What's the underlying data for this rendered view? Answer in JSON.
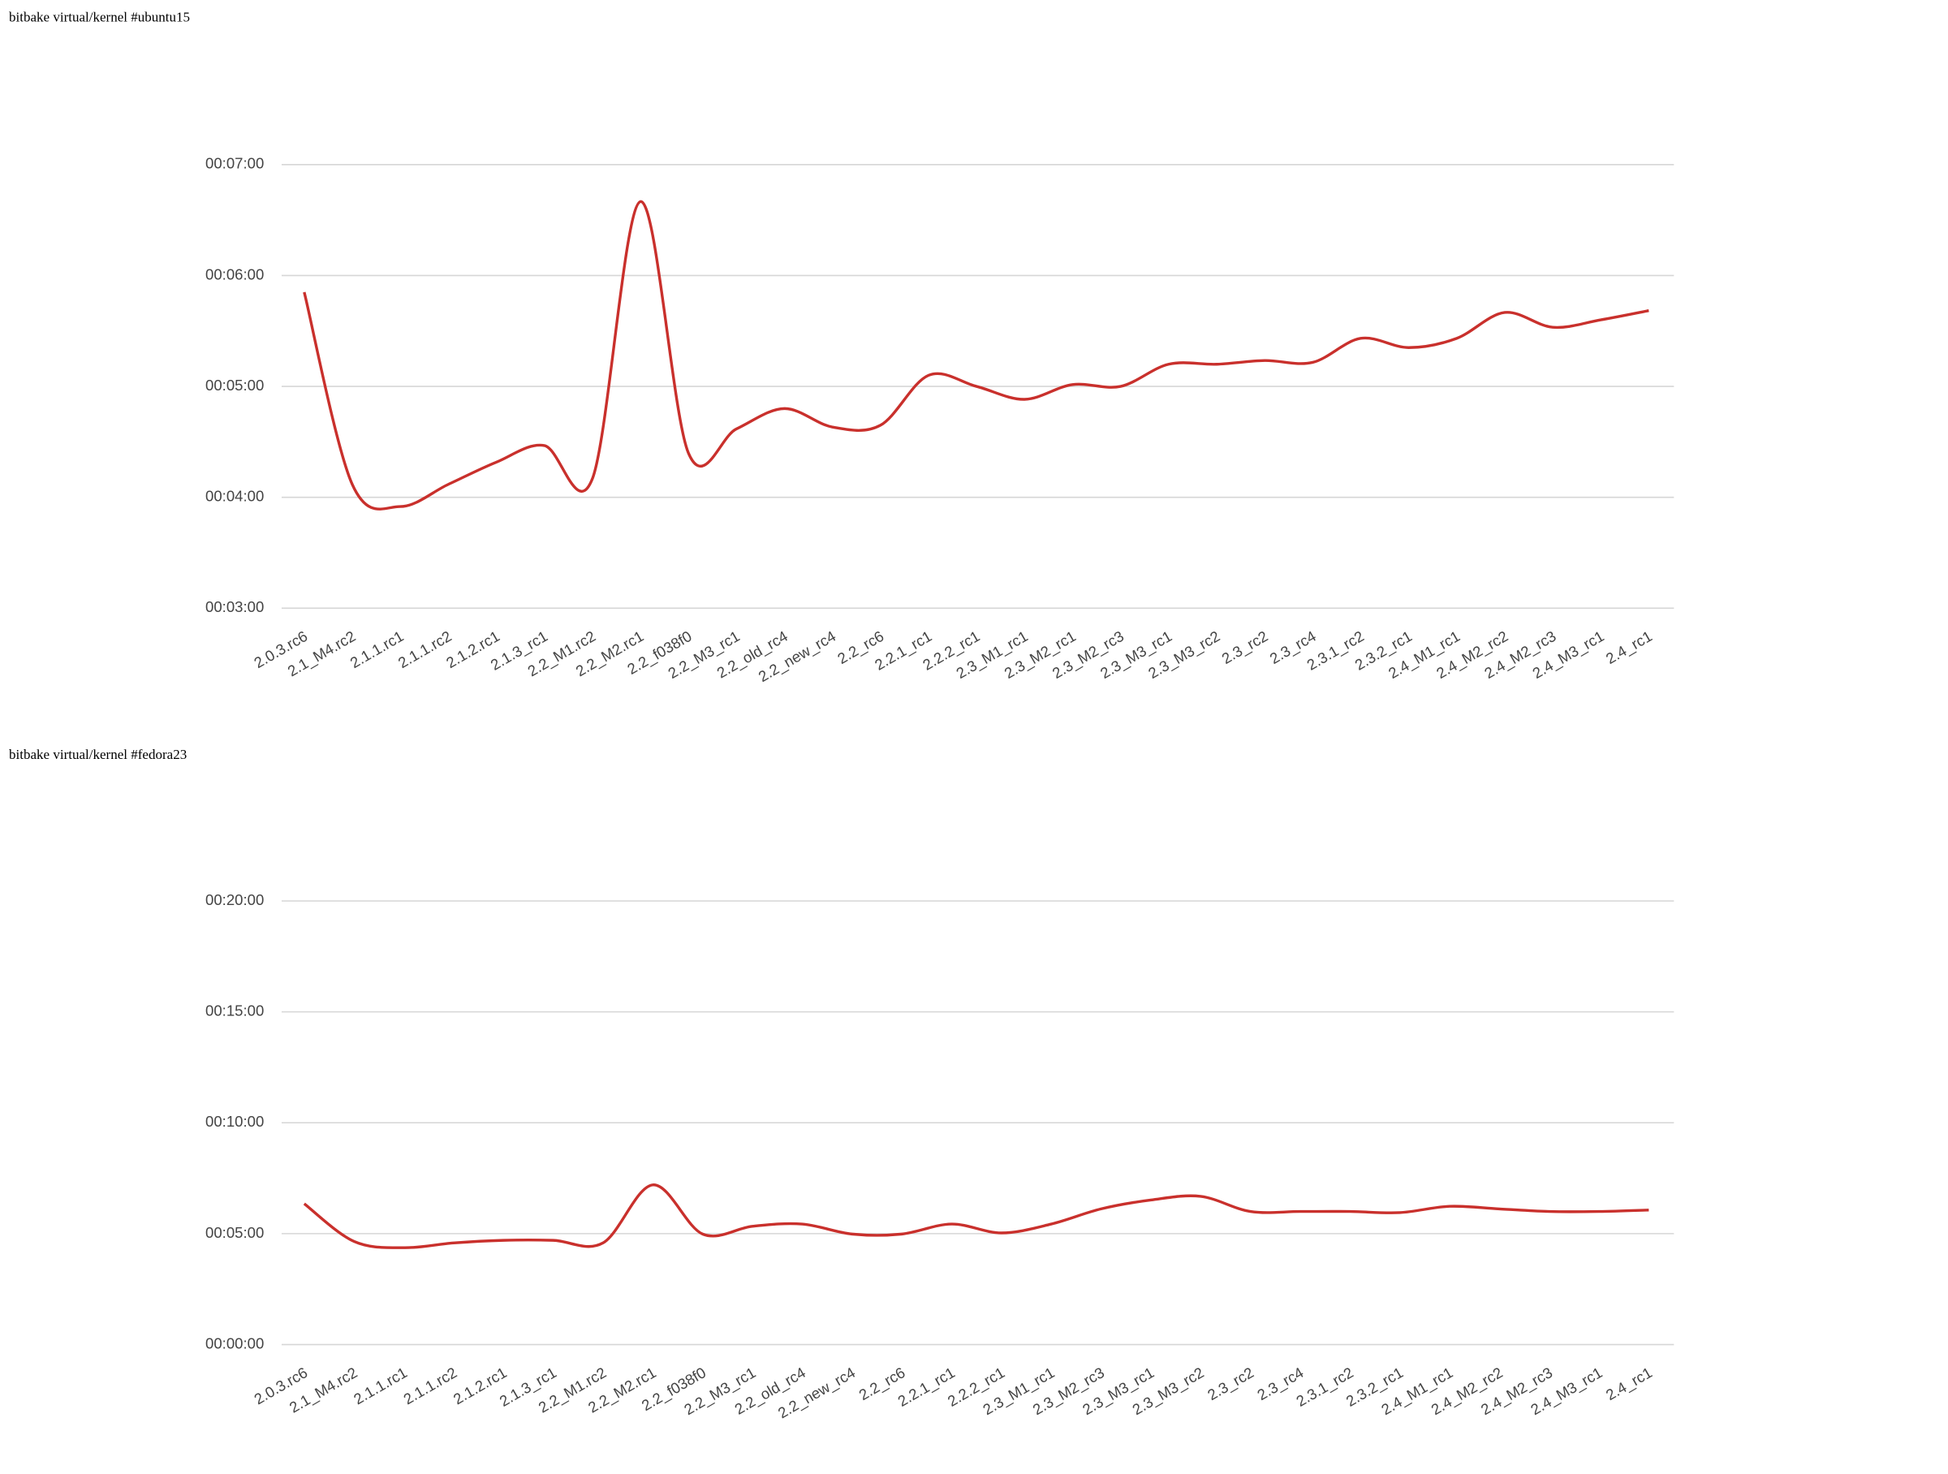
{
  "chart_data": [
    {
      "type": "line",
      "title": "bitbake virtual/kernel #ubuntu15",
      "categories": [
        "2.0.3.rc6",
        "2.1_M4.rc2",
        "2.1.1.rc1",
        "2.1.1.rc2",
        "2.1.2.rc1",
        "2.1.3_rc1",
        "2.2_M1.rc2",
        "2.2_M2.rc1",
        "2.2_f038f0",
        "2.2_M3_rc1",
        "2.2_old_rc4",
        "2.2_new_rc4",
        "2.2_rc6",
        "2.2.1_rc1",
        "2.2.2_rc1",
        "2.3_M1_rc1",
        "2.3_M2_rc1",
        "2.3_M2_rc3",
        "2.3_M3_rc1",
        "2.3_M3_rc2",
        "2.3_rc2",
        "2.3_rc4",
        "2.3.1_rc2",
        "2.3.2_rc1",
        "2.4_M1_rc1",
        "2.4_M2_rc2",
        "2.4_M2_rc3",
        "2.4_M3_rc1",
        "2.4_rc1"
      ],
      "series": [
        {
          "color": "#c9302c",
          "values": [
            351,
            247,
            235,
            247,
            259,
            268,
            250,
            400,
            264,
            277,
            288,
            278,
            279,
            306,
            300,
            293,
            301,
            300,
            312,
            312,
            314,
            313,
            326,
            321,
            326,
            340,
            332,
            336,
            341
          ]
        }
      ],
      "ylim": [
        180,
        420
      ],
      "yticks": [
        {
          "value": 180,
          "label": "00:03:00"
        },
        {
          "value": 240,
          "label": "00:04:00"
        },
        {
          "value": 300,
          "label": "00:05:00"
        },
        {
          "value": 360,
          "label": "00:06:00"
        },
        {
          "value": 420,
          "label": "00:07:00"
        }
      ],
      "grid": true
    },
    {
      "type": "line",
      "title": "bitbake virtual/kernel #fedora23",
      "categories": [
        "2.0.3.rc6",
        "2.1_M4.rc2",
        "2.1.1.rc1",
        "2.1.1.rc2",
        "2.1.2.rc1",
        "2.1.3_rc1",
        "2.2_M1.rc2",
        "2.2_M2.rc1",
        "2.2_f038f0",
        "2.2_M3_rc1",
        "2.2_old_rc4",
        "2.2_new_rc4",
        "2.2_rc6",
        "2.2.1_rc1",
        "2.2.2_rc1",
        "2.3_M1_rc1",
        "2.3_M2_rc3",
        "2.3_M3_rc1",
        "2.3_M3_rc2",
        "2.3_rc2",
        "2.3_rc4",
        "2.3.1_rc2",
        "2.3.2_rc1",
        "2.4_M1_rc1",
        "2.4_M2_rc2",
        "2.4_M2_rc3",
        "2.4_M3_rc1",
        "2.4_rc1"
      ],
      "series": [
        {
          "color": "#c9302c",
          "values": [
            381,
            279,
            262,
            275,
            282,
            282,
            275,
            432,
            299,
            320,
            326,
            299,
            299,
            326,
            302,
            326,
            367,
            391,
            401,
            360,
            360,
            360,
            357,
            374,
            367,
            360,
            360,
            364
          ]
        }
      ],
      "ylim": [
        0,
        1200
      ],
      "yticks": [
        {
          "value": 0,
          "label": "00:00:00"
        },
        {
          "value": 300,
          "label": "00:05:00"
        },
        {
          "value": 600,
          "label": "00:10:00"
        },
        {
          "value": 900,
          "label": "00:15:00"
        },
        {
          "value": 1200,
          "label": "00:20:00"
        }
      ],
      "grid": true
    }
  ]
}
